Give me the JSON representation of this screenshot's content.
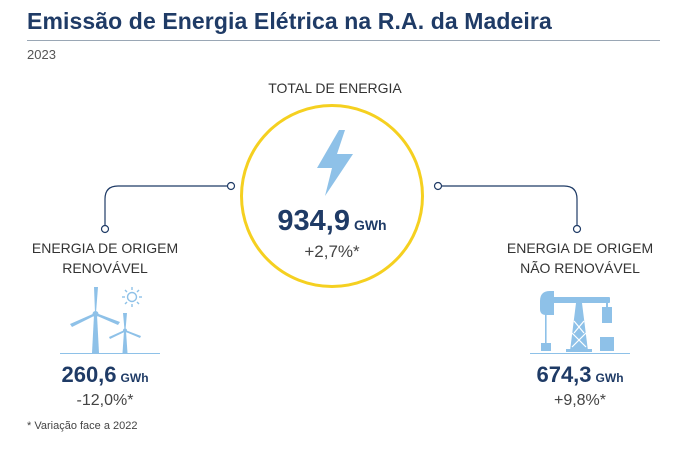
{
  "header": {
    "title": "Emissão de Energia Elétrica na R.A. da Madeira",
    "year": "2023"
  },
  "total": {
    "label": "TOTAL DE ENERGIA",
    "value": "934,9",
    "unit": "GWh",
    "change": "+2,7%*",
    "icon": "lightning-bolt-icon"
  },
  "renewable": {
    "label_line1": "ENERGIA DE ORIGEM",
    "label_line2": "RENOVÁVEL",
    "value": "260,6",
    "unit": "GWh",
    "change": "-12,0%*",
    "icon": "wind-turbine-sun-icon"
  },
  "non_renewable": {
    "label_line1": "ENERGIA DE ORIGEM",
    "label_line2": "NÃO RENOVÁVEL",
    "value": "674,3",
    "unit": "GWh",
    "change": "+9,8%*",
    "icon": "oil-pump-icon"
  },
  "footnote": "* Variação face a 2022",
  "colors": {
    "title": "#1f3b66",
    "accent_circle": "#f5d020",
    "icon": "#8ec1e8",
    "connector": "#1f3b66"
  }
}
